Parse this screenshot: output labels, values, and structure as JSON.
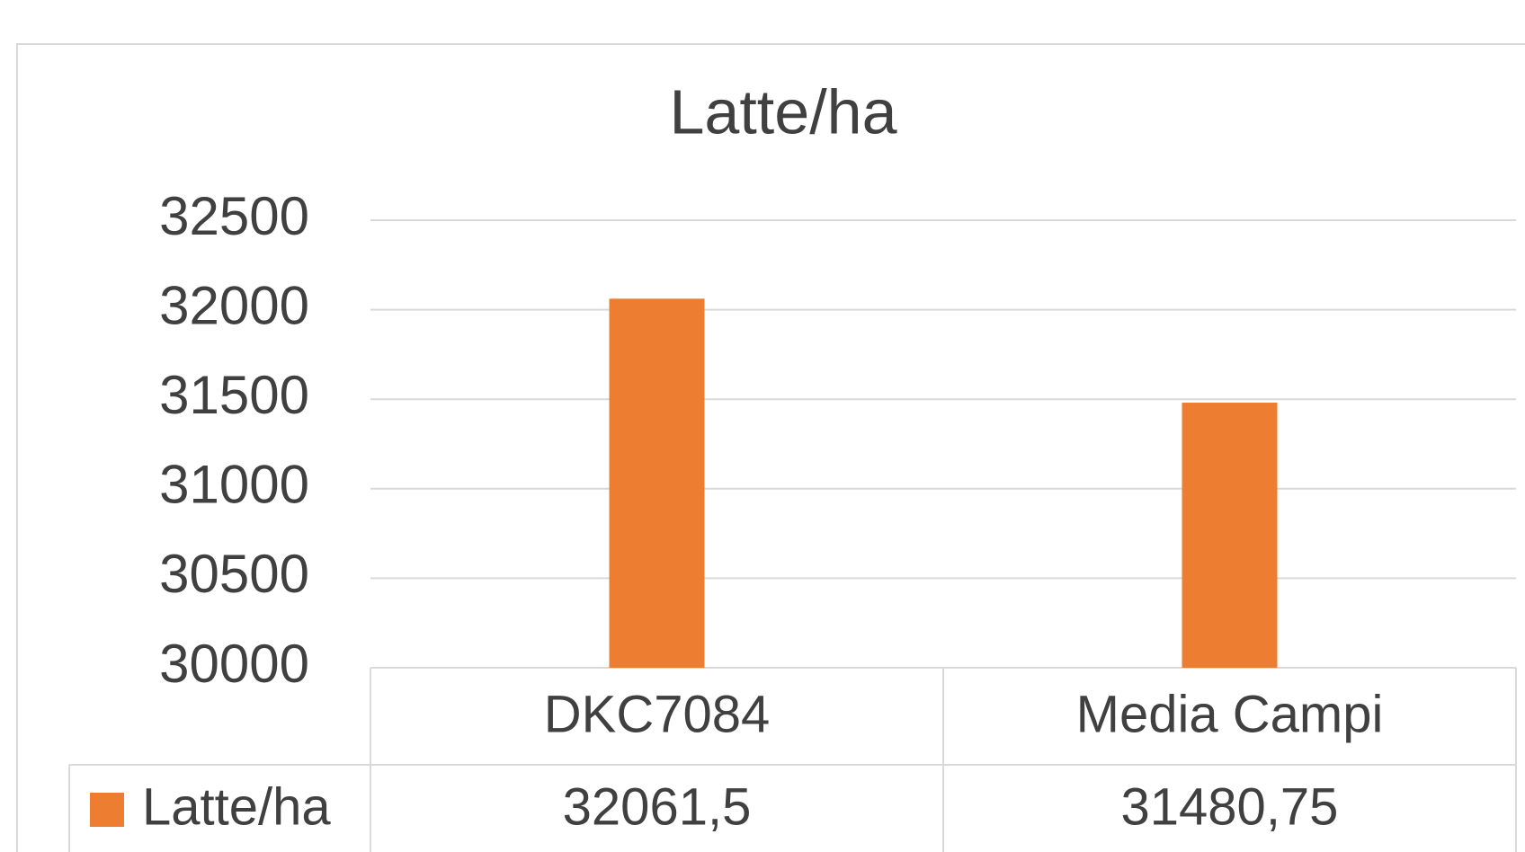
{
  "chart_data": {
    "type": "bar",
    "title": "Latte/ha",
    "categories": [
      "DKC7084",
      "Media Campi"
    ],
    "series": [
      {
        "name": "Latte/ha",
        "color": "#ed7d31",
        "values": [
          32061.5,
          31480.75
        ],
        "value_labels": [
          "32061,5",
          "31480,75"
        ]
      }
    ],
    "ylim": [
      30000,
      32500
    ],
    "yticks": [
      30000,
      30500,
      31000,
      31500,
      32000,
      32500
    ],
    "grid": true
  }
}
